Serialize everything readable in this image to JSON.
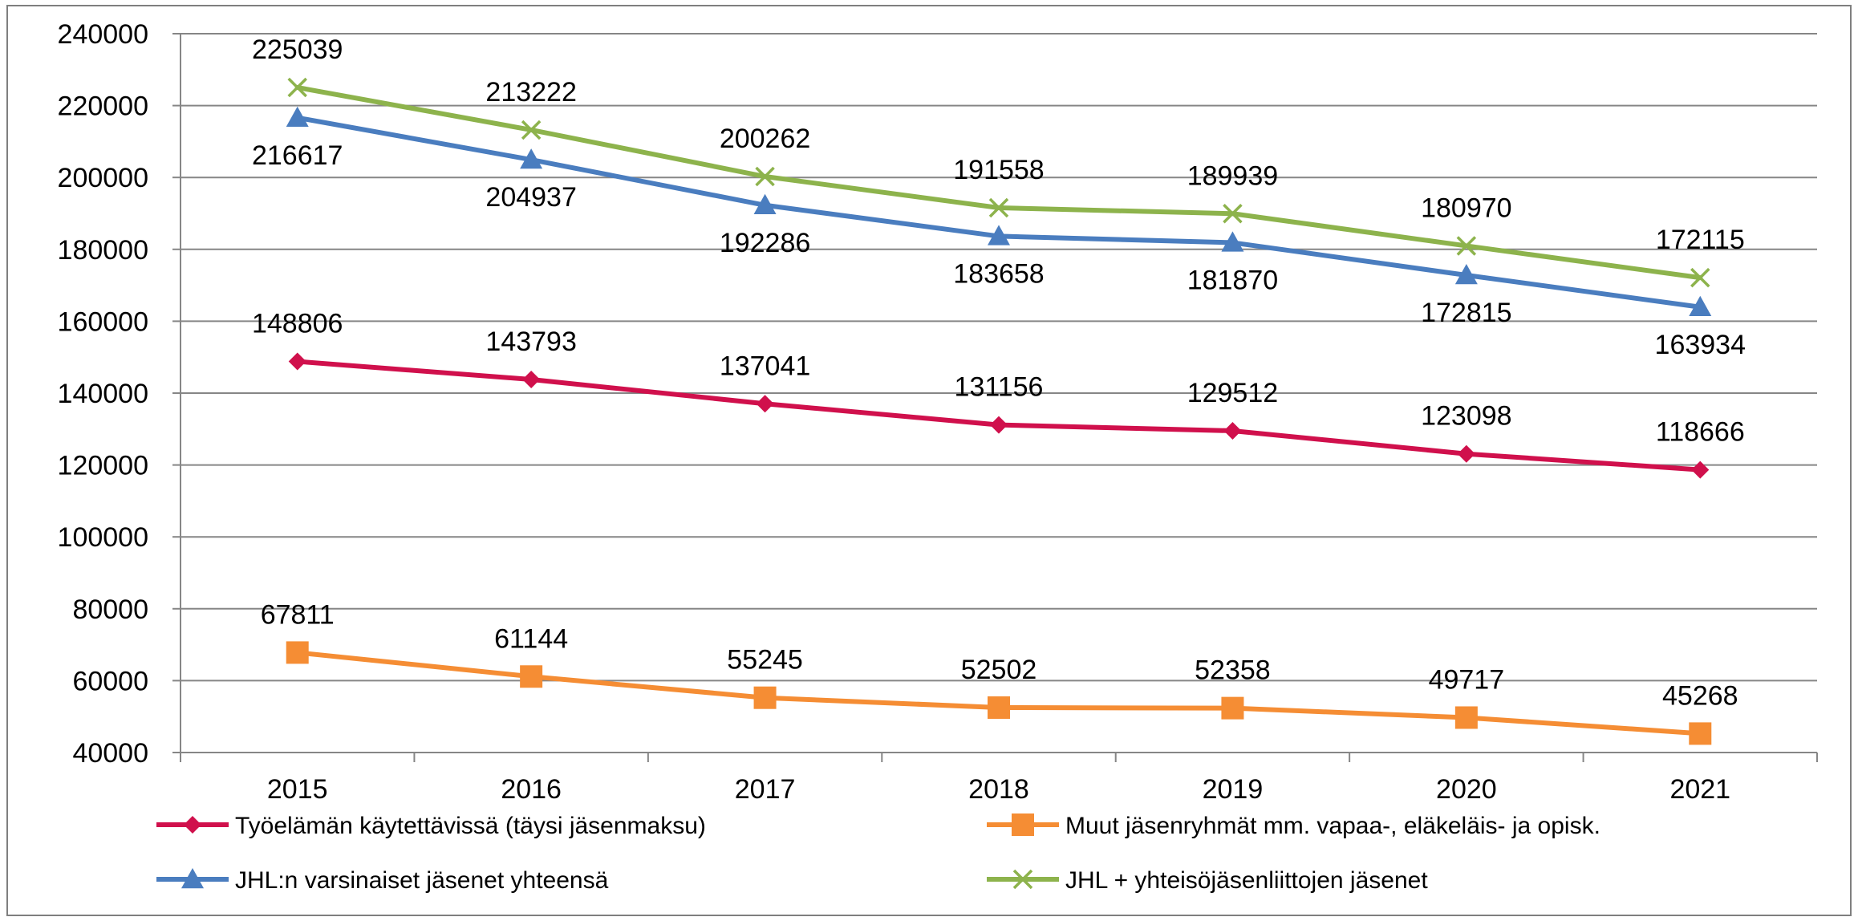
{
  "chart_data": {
    "type": "line",
    "title": "",
    "xlabel": "",
    "ylabel": "",
    "categories": [
      "2015",
      "2016",
      "2017",
      "2018",
      "2019",
      "2020",
      "2021"
    ],
    "ylim": [
      40000,
      240000
    ],
    "yticks": [
      40000,
      60000,
      80000,
      100000,
      120000,
      140000,
      160000,
      180000,
      200000,
      220000,
      240000
    ],
    "grid": true,
    "legend_position": "bottom",
    "series": [
      {
        "name": "Työelämän käytettävissä (täysi jäsenmaksu)",
        "color": "#d0104c",
        "marker": "diamond",
        "label_position": "above",
        "values": [
          148806,
          143793,
          137041,
          131156,
          129512,
          123098,
          118666
        ]
      },
      {
        "name": "Muut jäsenryhmät mm. vapaa-, eläkeläis- ja opisk.",
        "color": "#f58d34",
        "marker": "square",
        "label_position": "above",
        "values": [
          67811,
          61144,
          55245,
          52502,
          52358,
          49717,
          45268
        ]
      },
      {
        "name": "JHL:n varsinaiset jäsenet yhteensä",
        "color": "#4a7dbf",
        "marker": "triangle",
        "label_position": "below",
        "values": [
          216617,
          204937,
          192286,
          183658,
          181870,
          172815,
          163934
        ]
      },
      {
        "name": "JHL + yhteisöjäsenliittojen jäsenet",
        "color": "#8db34c",
        "marker": "x",
        "label_position": "above",
        "values": [
          225039,
          213222,
          200262,
          191558,
          189939,
          180970,
          172115
        ]
      }
    ]
  }
}
